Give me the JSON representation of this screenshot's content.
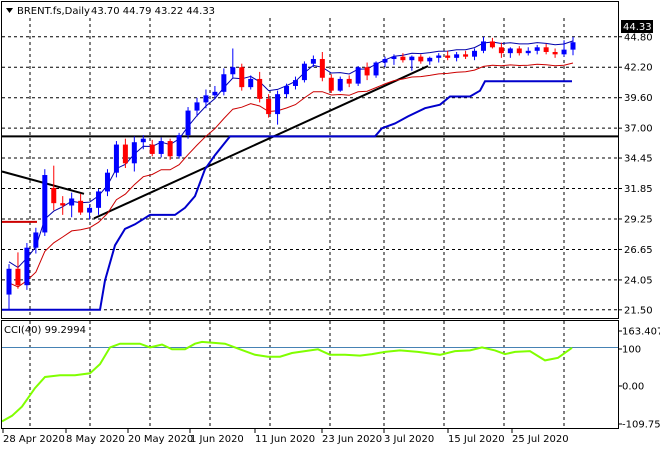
{
  "header": {
    "symbol": "BRENT.fs,Daily",
    "ohlc": "43.70 44.79 43.22 44.33"
  },
  "price_axis": {
    "ticks": [
      "44.80",
      "42.20",
      "39.60",
      "37.00",
      "34.45",
      "31.85",
      "29.25",
      "26.65",
      "24.05",
      "21.50"
    ],
    "current_price": "44.33"
  },
  "time_axis": {
    "labels": [
      "28 Apr 2020",
      "8 May 2020",
      "20 May 2020",
      "1 Jun 2020",
      "11 Jun 2020",
      "23 Jun 2020",
      "3 Jul 2020",
      "15 Jul 2020",
      "25 Jul 2020"
    ]
  },
  "indicator": {
    "label": "CCI(40) 99.2994",
    "ticks": [
      "163.4073",
      "100",
      "0.00",
      "-109.751"
    ]
  },
  "colors": {
    "bull": "#0000ff",
    "bear": "#ff0000",
    "upper_band": "#0000aa",
    "lower_band": "#cc0000",
    "channel": "#0000cc",
    "cci": "#80ff00",
    "cci_level": "#4682b4",
    "grid": "#000000",
    "price_tag_bg": "#000000"
  },
  "chart_data": {
    "type": "candlestick",
    "y_range": [
      20.8,
      46.4
    ],
    "series": [
      {
        "name": "BRENT.fs,Daily",
        "ohlc": [
          [
            22.8,
            25.4,
            21.5,
            25.0
          ],
          [
            25.0,
            26.4,
            23.3,
            23.6
          ],
          [
            23.6,
            27.2,
            23.2,
            26.8
          ],
          [
            26.8,
            28.5,
            26.3,
            28.1
          ],
          [
            28.1,
            33.5,
            27.8,
            33.0
          ],
          [
            31.9,
            33.8,
            30.0,
            30.6
          ],
          [
            30.6,
            31.2,
            29.6,
            30.4
          ],
          [
            30.4,
            31.5,
            29.4,
            31.0
          ],
          [
            30.8,
            31.4,
            29.6,
            29.8
          ],
          [
            29.8,
            30.5,
            29.2,
            30.2
          ],
          [
            30.2,
            31.8,
            29.6,
            31.6
          ],
          [
            31.6,
            33.5,
            31.2,
            33.2
          ],
          [
            33.2,
            35.9,
            32.8,
            35.6
          ],
          [
            35.6,
            36.1,
            33.6,
            34.0
          ],
          [
            34.0,
            36.3,
            33.3,
            35.8
          ],
          [
            35.8,
            36.4,
            35.2,
            36.1
          ],
          [
            35.6,
            36.0,
            34.6,
            34.8
          ],
          [
            34.8,
            36.2,
            34.5,
            35.9
          ],
          [
            35.9,
            36.1,
            34.3,
            34.6
          ],
          [
            34.6,
            36.6,
            34.4,
            36.4
          ],
          [
            36.4,
            38.8,
            36.1,
            38.5
          ],
          [
            38.5,
            39.6,
            38.0,
            39.2
          ],
          [
            39.2,
            40.3,
            38.7,
            39.8
          ],
          [
            39.8,
            40.6,
            39.5,
            40.1
          ],
          [
            40.1,
            42.1,
            39.8,
            41.6
          ],
          [
            41.6,
            43.8,
            41.3,
            42.2
          ],
          [
            42.2,
            42.5,
            40.2,
            40.5
          ],
          [
            40.5,
            41.5,
            40.3,
            41.2
          ],
          [
            41.2,
            41.8,
            39.2,
            39.5
          ],
          [
            39.5,
            39.9,
            37.9,
            38.2
          ],
          [
            38.2,
            40.2,
            37.3,
            39.9
          ],
          [
            39.9,
            40.8,
            39.6,
            40.6
          ],
          [
            40.6,
            41.4,
            40.3,
            41.1
          ],
          [
            41.1,
            42.7,
            40.9,
            42.5
          ],
          [
            42.5,
            43.2,
            42.2,
            42.9
          ],
          [
            42.9,
            43.5,
            41.0,
            41.3
          ],
          [
            41.3,
            41.6,
            40.0,
            40.2
          ],
          [
            40.2,
            41.4,
            40.1,
            41.2
          ],
          [
            41.2,
            41.5,
            40.5,
            40.8
          ],
          [
            40.8,
            42.3,
            40.6,
            42.2
          ],
          [
            42.2,
            42.6,
            41.1,
            41.5
          ],
          [
            41.5,
            42.7,
            41.3,
            42.6
          ],
          [
            42.6,
            43.1,
            42.2,
            42.9
          ],
          [
            42.9,
            43.3,
            42.4,
            43.1
          ],
          [
            43.1,
            43.4,
            42.6,
            42.8
          ],
          [
            42.8,
            43.2,
            41.9,
            43.1
          ],
          [
            43.1,
            43.3,
            42.5,
            42.7
          ],
          [
            42.7,
            43.1,
            42.4,
            43.0
          ],
          [
            43.0,
            43.4,
            42.6,
            43.2
          ],
          [
            43.2,
            43.6,
            42.8,
            43.0
          ],
          [
            43.0,
            43.5,
            42.7,
            43.3
          ],
          [
            43.3,
            43.6,
            42.9,
            43.1
          ],
          [
            43.1,
            43.8,
            42.8,
            43.6
          ],
          [
            43.6,
            44.8,
            43.4,
            44.4
          ],
          [
            44.4,
            44.7,
            43.8,
            43.9
          ],
          [
            43.9,
            44.3,
            43.0,
            43.4
          ],
          [
            43.4,
            43.9,
            43.0,
            43.8
          ],
          [
            43.8,
            44.0,
            43.2,
            43.4
          ],
          [
            43.4,
            43.9,
            43.2,
            43.6
          ],
          [
            43.6,
            44.1,
            43.3,
            43.9
          ],
          [
            43.9,
            44.2,
            43.3,
            43.5
          ],
          [
            43.5,
            43.8,
            43.0,
            43.3
          ],
          [
            43.3,
            44.5,
            43.1,
            43.7
          ],
          [
            43.7,
            44.79,
            43.22,
            44.33
          ]
        ]
      }
    ]
  }
}
